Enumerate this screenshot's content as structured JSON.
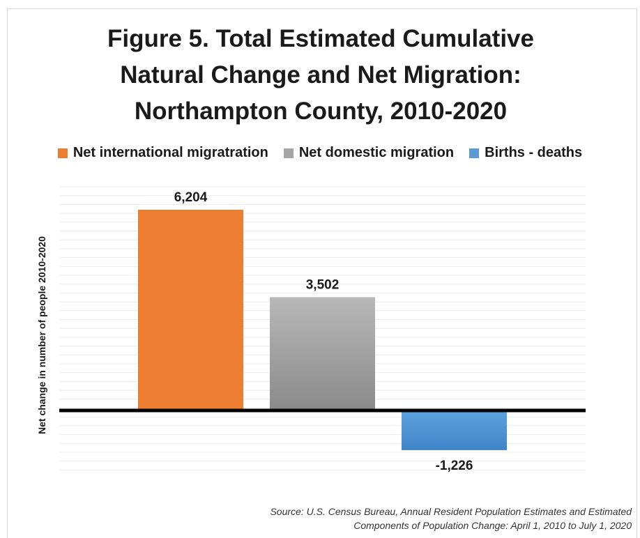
{
  "chart_data": {
    "type": "bar",
    "title_lines": [
      "Figure 5. Total Estimated Cumulative",
      "Natural Change and Net Migration:",
      "Northampton County, 2010-2020"
    ],
    "ylabel": "Net change in number of people 2010-2020",
    "categories": [
      "Net international migratration",
      "Net domestic migration",
      "Births  - deaths"
    ],
    "series": [
      {
        "name": "Net international migratration",
        "value": 6204,
        "label": "6,204",
        "color": "#ed7d31"
      },
      {
        "name": "Net domestic migration",
        "value": 3502,
        "label": "3,502",
        "color": "#a5a5a5"
      },
      {
        "name": "Births  - deaths",
        "value": -1226,
        "label": "-1,226",
        "color": "#5b9bd5"
      }
    ],
    "ylim": [
      -2000,
      7000
    ],
    "grid": true,
    "legend_position": "top"
  },
  "source_lines": [
    "Source: U.S. Census Bureau, Annual Resident Population Estimates and Estimated",
    "Components of Population Change: April 1, 2010 to July 1, 2020"
  ]
}
